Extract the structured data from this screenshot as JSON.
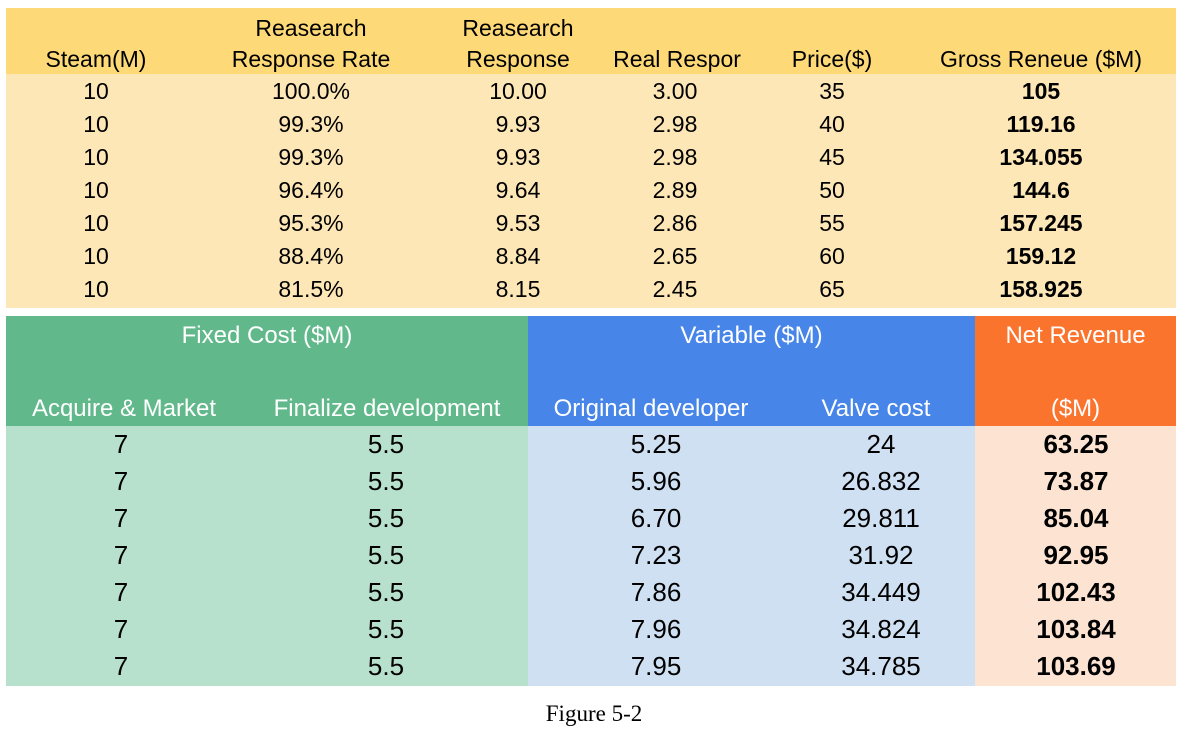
{
  "top_table": {
    "headers": [
      [
        "",
        "Steam(M)"
      ],
      [
        "Reasearch",
        "Response Rate"
      ],
      [
        "Reasearch",
        "Response"
      ],
      [
        "",
        "Real Respor"
      ],
      [
        "",
        "Price($)"
      ],
      [
        "",
        "Gross Reneue ($M)"
      ]
    ],
    "rows": [
      [
        "10",
        "100.0%",
        "10.00",
        "3.00",
        "35",
        "105"
      ],
      [
        "10",
        "99.3%",
        "9.93",
        "2.98",
        "40",
        "119.16"
      ],
      [
        "10",
        "99.3%",
        "9.93",
        "2.98",
        "45",
        "134.055"
      ],
      [
        "10",
        "96.4%",
        "9.64",
        "2.89",
        "50",
        "144.6"
      ],
      [
        "10",
        "95.3%",
        "9.53",
        "2.86",
        "55",
        "157.245"
      ],
      [
        "10",
        "88.4%",
        "8.84",
        "2.65",
        "60",
        "159.12"
      ],
      [
        "10",
        "81.5%",
        "8.15",
        "2.45",
        "65",
        "158.925"
      ]
    ]
  },
  "bottom_table": {
    "group_headers": {
      "fixed": "Fixed Cost ($M)",
      "variable": "Variable ($M)",
      "net": "Net Revenue"
    },
    "sub_headers": [
      "Acquire & Market",
      "Finalize development",
      "Original developer",
      "Valve cost",
      "($M)"
    ],
    "rows": [
      [
        "7",
        "5.5",
        "5.25",
        "24",
        "63.25"
      ],
      [
        "7",
        "5.5",
        "5.96",
        "26.832",
        "73.87"
      ],
      [
        "7",
        "5.5",
        "6.70",
        "29.811",
        "85.04"
      ],
      [
        "7",
        "5.5",
        "7.23",
        "31.92",
        "92.95"
      ],
      [
        "7",
        "5.5",
        "7.86",
        "34.449",
        "102.43"
      ],
      [
        "7",
        "5.5",
        "7.96",
        "34.824",
        "103.84"
      ],
      [
        "7",
        "5.5",
        "7.95",
        "34.785",
        "103.69"
      ]
    ]
  },
  "caption": "Figure 5-2",
  "colors": {
    "top_header": "#fdd978",
    "top_body": "#fde7b6",
    "fixed_header": "#61b98b",
    "fixed_body": "#b7e1cc",
    "variable_header": "#4786e8",
    "variable_body": "#cfe0f2",
    "net_header": "#fb742d",
    "net_body": "#fde4d2"
  }
}
